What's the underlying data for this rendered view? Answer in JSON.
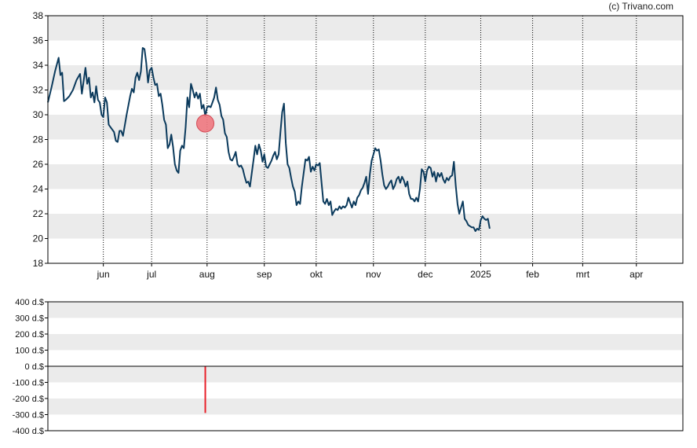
{
  "copyright": "(c) Trivano.com",
  "colors": {
    "band": "#ebebeb",
    "price_line": "#0b3a5c",
    "marker_fill": "#f07880",
    "marker_stroke": "#d24a55",
    "volume_bar": "#e8202a"
  },
  "chart_data": [
    {
      "type": "line",
      "name": "price-chart",
      "ylim": [
        18,
        38
      ],
      "y_ticks": [
        "18",
        "20",
        "22",
        "24",
        "26",
        "28",
        "30",
        "32",
        "34",
        "36",
        "38"
      ],
      "x_range": [
        0,
        355
      ],
      "x_ticks": [
        {
          "label": "jun",
          "x": 31
        },
        {
          "label": "jul",
          "x": 58
        },
        {
          "label": "aug",
          "x": 89
        },
        {
          "label": "sep",
          "x": 121
        },
        {
          "label": "okt",
          "x": 150
        },
        {
          "label": "nov",
          "x": 182
        },
        {
          "label": "dec",
          "x": 211
        },
        {
          "label": "2025",
          "x": 242
        },
        {
          "label": "feb",
          "x": 271
        },
        {
          "label": "mrt",
          "x": 299
        },
        {
          "label": "apr",
          "x": 329
        }
      ],
      "series": [
        {
          "points": [
            [
              0,
              31.0
            ],
            [
              2,
              32.2
            ],
            [
              4,
              33.5
            ],
            [
              6,
              34.6
            ],
            [
              7,
              33.2
            ],
            [
              8,
              33.4
            ],
            [
              9,
              31.1
            ],
            [
              10,
              31.2
            ],
            [
              12,
              31.5
            ],
            [
              14,
              32.0
            ],
            [
              16,
              32.8
            ],
            [
              18,
              33.3
            ],
            [
              19,
              31.7
            ],
            [
              21,
              33.8
            ],
            [
              22,
              32.5
            ],
            [
              23,
              33.0
            ],
            [
              24,
              31.4
            ],
            [
              25,
              31.8
            ],
            [
              26,
              31.0
            ],
            [
              27,
              32.3
            ],
            [
              28,
              31.2
            ],
            [
              29,
              31.0
            ],
            [
              30,
              30.0
            ],
            [
              31,
              29.8
            ],
            [
              32,
              31.4
            ],
            [
              33,
              31.0
            ],
            [
              34,
              29.2
            ],
            [
              35,
              29.0
            ],
            [
              37,
              28.6
            ],
            [
              38,
              27.9
            ],
            [
              39,
              27.8
            ],
            [
              40,
              28.7
            ],
            [
              41,
              28.7
            ],
            [
              42,
              28.3
            ],
            [
              44,
              30.0
            ],
            [
              46,
              31.5
            ],
            [
              47,
              32.1
            ],
            [
              48,
              31.8
            ],
            [
              49,
              33.0
            ],
            [
              50,
              33.4
            ],
            [
              51,
              32.8
            ],
            [
              52,
              33.5
            ],
            [
              53,
              35.4
            ],
            [
              54,
              35.3
            ],
            [
              55,
              34.2
            ],
            [
              56,
              32.6
            ],
            [
              57,
              33.6
            ],
            [
              58,
              33.8
            ],
            [
              59,
              33.0
            ],
            [
              60,
              32.4
            ],
            [
              61,
              32.5
            ],
            [
              62,
              31.5
            ],
            [
              63,
              31.7
            ],
            [
              64,
              30.8
            ],
            [
              65,
              29.6
            ],
            [
              66,
              29.2
            ],
            [
              67,
              27.3
            ],
            [
              68,
              27.6
            ],
            [
              69,
              28.4
            ],
            [
              70,
              27.4
            ],
            [
              71,
              26.0
            ],
            [
              72,
              25.5
            ],
            [
              73,
              25.3
            ],
            [
              74,
              27.1
            ],
            [
              75,
              27.5
            ],
            [
              76,
              27.3
            ],
            [
              77,
              29.0
            ],
            [
              78,
              31.4
            ],
            [
              79,
              30.6
            ],
            [
              80,
              32.5
            ],
            [
              81,
              32.0
            ],
            [
              82,
              31.4
            ],
            [
              83,
              31.8
            ],
            [
              84,
              31.3
            ],
            [
              85,
              31.7
            ],
            [
              86,
              30.5
            ],
            [
              87,
              30.8
            ],
            [
              88,
              29.9
            ],
            [
              89,
              30.6
            ],
            [
              90,
              30.7
            ],
            [
              91,
              30.6
            ],
            [
              92,
              31.0
            ],
            [
              93,
              31.4
            ],
            [
              94,
              32.2
            ],
            [
              95,
              31.2
            ],
            [
              96,
              30.8
            ],
            [
              97,
              29.9
            ],
            [
              98,
              29.6
            ],
            [
              99,
              28.5
            ],
            [
              100,
              28.2
            ],
            [
              101,
              27.0
            ],
            [
              102,
              26.4
            ],
            [
              103,
              26.3
            ],
            [
              104,
              26.6
            ],
            [
              105,
              27.0
            ],
            [
              106,
              26.0
            ],
            [
              107,
              25.8
            ],
            [
              108,
              25.9
            ],
            [
              109,
              25.6
            ],
            [
              110,
              25.0
            ],
            [
              111,
              24.5
            ],
            [
              112,
              24.6
            ],
            [
              113,
              24.2
            ],
            [
              114,
              25.3
            ],
            [
              115,
              26.4
            ],
            [
              116,
              27.5
            ],
            [
              117,
              26.8
            ],
            [
              118,
              27.6
            ],
            [
              119,
              27.1
            ],
            [
              120,
              26.2
            ],
            [
              121,
              26.8
            ],
            [
              122,
              25.8
            ],
            [
              123,
              25.7
            ],
            [
              124,
              26.0
            ],
            [
              125,
              26.3
            ],
            [
              126,
              26.7
            ],
            [
              127,
              27.0
            ],
            [
              128,
              26.4
            ],
            [
              129,
              26.8
            ],
            [
              130,
              28.6
            ],
            [
              131,
              30.2
            ],
            [
              132,
              30.9
            ],
            [
              133,
              27.7
            ],
            [
              134,
              26.0
            ],
            [
              135,
              25.7
            ],
            [
              136,
              24.9
            ],
            [
              137,
              24.2
            ],
            [
              138,
              23.8
            ],
            [
              139,
              22.7
            ],
            [
              140,
              23.0
            ],
            [
              141,
              22.8
            ],
            [
              142,
              24.2
            ],
            [
              143,
              25.3
            ],
            [
              144,
              26.4
            ],
            [
              145,
              26.3
            ],
            [
              146,
              26.6
            ],
            [
              147,
              25.4
            ],
            [
              148,
              25.8
            ],
            [
              149,
              25.5
            ],
            [
              150,
              26.0
            ],
            [
              151,
              25.9
            ],
            [
              152,
              26.1
            ],
            [
              153,
              24.5
            ],
            [
              154,
              23.0
            ],
            [
              155,
              22.8
            ],
            [
              156,
              23.2
            ],
            [
              157,
              22.7
            ],
            [
              158,
              23.0
            ],
            [
              159,
              21.9
            ],
            [
              160,
              22.2
            ],
            [
              161,
              22.4
            ],
            [
              162,
              22.3
            ],
            [
              163,
              22.6
            ],
            [
              164,
              22.4
            ],
            [
              165,
              22.6
            ],
            [
              166,
              22.5
            ],
            [
              167,
              22.7
            ],
            [
              168,
              23.3
            ],
            [
              169,
              22.9
            ],
            [
              170,
              22.5
            ],
            [
              171,
              23.0
            ],
            [
              172,
              22.7
            ],
            [
              173,
              23.3
            ],
            [
              174,
              23.5
            ],
            [
              175,
              23.9
            ],
            [
              176,
              24.1
            ],
            [
              177,
              24.5
            ],
            [
              178,
              25.0
            ],
            [
              179,
              23.6
            ],
            [
              180,
              25.2
            ],
            [
              181,
              26.3
            ],
            [
              182,
              26.8
            ],
            [
              183,
              27.3
            ],
            [
              184,
              27.1
            ],
            [
              185,
              27.2
            ],
            [
              186,
              26.3
            ],
            [
              187,
              25.2
            ],
            [
              188,
              24.3
            ],
            [
              189,
              24.0
            ],
            [
              190,
              24.2
            ],
            [
              191,
              24.5
            ],
            [
              192,
              24.7
            ],
            [
              193,
              24.0
            ],
            [
              194,
              24.3
            ],
            [
              195,
              24.8
            ],
            [
              196,
              25.0
            ],
            [
              197,
              24.5
            ],
            [
              198,
              25.0
            ],
            [
              199,
              24.7
            ],
            [
              200,
              24.2
            ],
            [
              201,
              24.6
            ],
            [
              202,
              23.6
            ],
            [
              203,
              23.2
            ],
            [
              204,
              23.2
            ],
            [
              205,
              23.0
            ],
            [
              206,
              23.3
            ],
            [
              207,
              23.0
            ],
            [
              208,
              24.0
            ],
            [
              209,
              25.6
            ],
            [
              210,
              25.4
            ],
            [
              211,
              24.6
            ],
            [
              212,
              25.5
            ],
            [
              213,
              25.8
            ],
            [
              214,
              25.7
            ],
            [
              215,
              25.0
            ],
            [
              216,
              25.4
            ],
            [
              217,
              24.6
            ],
            [
              218,
              25.3
            ],
            [
              219,
              25.0
            ],
            [
              220,
              25.3
            ],
            [
              221,
              24.8
            ],
            [
              222,
              24.5
            ],
            [
              223,
              24.9
            ],
            [
              224,
              24.7
            ],
            [
              225,
              25.0
            ],
            [
              226,
              25.1
            ],
            [
              227,
              26.2
            ],
            [
              228,
              24.3
            ],
            [
              229,
              22.8
            ],
            [
              230,
              22.0
            ],
            [
              231,
              22.5
            ],
            [
              232,
              23.0
            ],
            [
              233,
              21.6
            ],
            [
              234,
              21.4
            ],
            [
              235,
              21.1
            ],
            [
              236,
              21.0
            ],
            [
              237,
              20.9
            ],
            [
              238,
              20.9
            ],
            [
              239,
              20.6
            ],
            [
              240,
              20.8
            ],
            [
              241,
              20.7
            ],
            [
              242,
              21.5
            ],
            [
              243,
              21.8
            ],
            [
              244,
              21.6
            ],
            [
              245,
              21.5
            ],
            [
              246,
              21.6
            ],
            [
              247,
              20.8
            ]
          ]
        }
      ],
      "marker": {
        "x": 88,
        "y": 29.3
      }
    },
    {
      "type": "bar",
      "name": "volume-chart",
      "ylim": [
        -400,
        400
      ],
      "y_ticks": [
        "400 d.$",
        "300 d.$",
        "200 d.$",
        "100 d.$",
        "0 d.$",
        "-100 d.$",
        "-200 d.$",
        "-300 d.$",
        "-400 d.$"
      ],
      "bars": [
        {
          "x": 88,
          "value": -290
        }
      ]
    }
  ]
}
